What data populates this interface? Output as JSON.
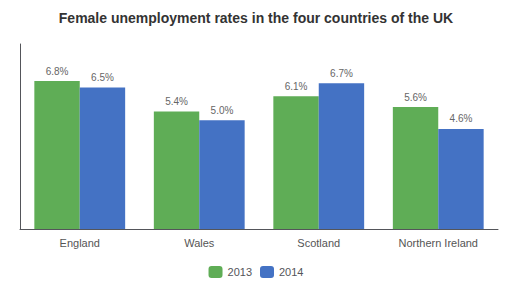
{
  "chart_data": {
    "type": "bar",
    "title": "Female unemployment rates in the four countries of the UK",
    "categories": [
      "England",
      "Wales",
      "Scotland",
      "Northern Ireland"
    ],
    "series": [
      {
        "name": "2013",
        "color": "#5fad56",
        "values": [
          6.8,
          5.4,
          6.1,
          5.6
        ],
        "value_labels": [
          "6.8%",
          "5.4%",
          "6.1%",
          "5.6%"
        ]
      },
      {
        "name": "2014",
        "color": "#4472c4",
        "values": [
          6.5,
          5.0,
          6.7,
          4.6
        ],
        "value_labels": [
          "6.5%",
          "5.0%",
          "6.7%",
          "4.6%"
        ]
      }
    ],
    "ylim": [
      0,
      8.5
    ],
    "yticks": [],
    "grid": false,
    "legend": "bottom",
    "data_labels": true,
    "tick_labels": "x"
  }
}
